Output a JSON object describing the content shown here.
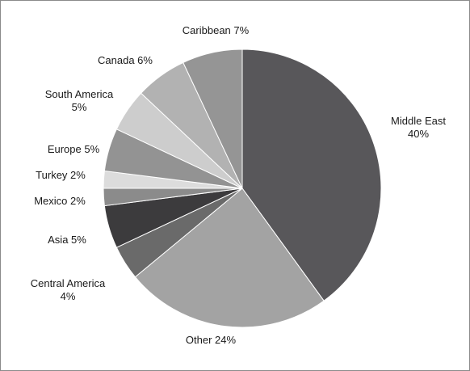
{
  "chart_data": {
    "type": "pie",
    "start_angle_deg": 0,
    "direction": "clockwise",
    "slices": [
      {
        "name": "Middle East",
        "value": 40,
        "label_lines": [
          "Middle East",
          "40%"
        ],
        "color": "#58575a"
      },
      {
        "name": "Other",
        "value": 24,
        "label_lines": [
          "Other 24%"
        ],
        "color": "#a3a3a3"
      },
      {
        "name": "Central America",
        "value": 4,
        "label_lines": [
          "Central America",
          "4%"
        ],
        "color": "#6a6a6a"
      },
      {
        "name": "Asia",
        "value": 5,
        "label_lines": [
          "Asia 5%"
        ],
        "color": "#3c3b3d"
      },
      {
        "name": "Mexico",
        "value": 2,
        "label_lines": [
          "Mexico 2%"
        ],
        "color": "#8b8b8b"
      },
      {
        "name": "Turkey",
        "value": 2,
        "label_lines": [
          "Turkey 2%"
        ],
        "color": "#dcdcdc"
      },
      {
        "name": "Europe",
        "value": 5,
        "label_lines": [
          "Europe 5%"
        ],
        "color": "#939393"
      },
      {
        "name": "South America",
        "value": 5,
        "label_lines": [
          "South America",
          "5%"
        ],
        "color": "#cdcdcd"
      },
      {
        "name": "Canada",
        "value": 6,
        "label_lines": [
          "Canada 6%"
        ],
        "color": "#b2b2b2"
      },
      {
        "name": "Caribbean",
        "value": 7,
        "label_lines": [
          "Caribbean 7%"
        ],
        "color": "#959595"
      }
    ]
  }
}
